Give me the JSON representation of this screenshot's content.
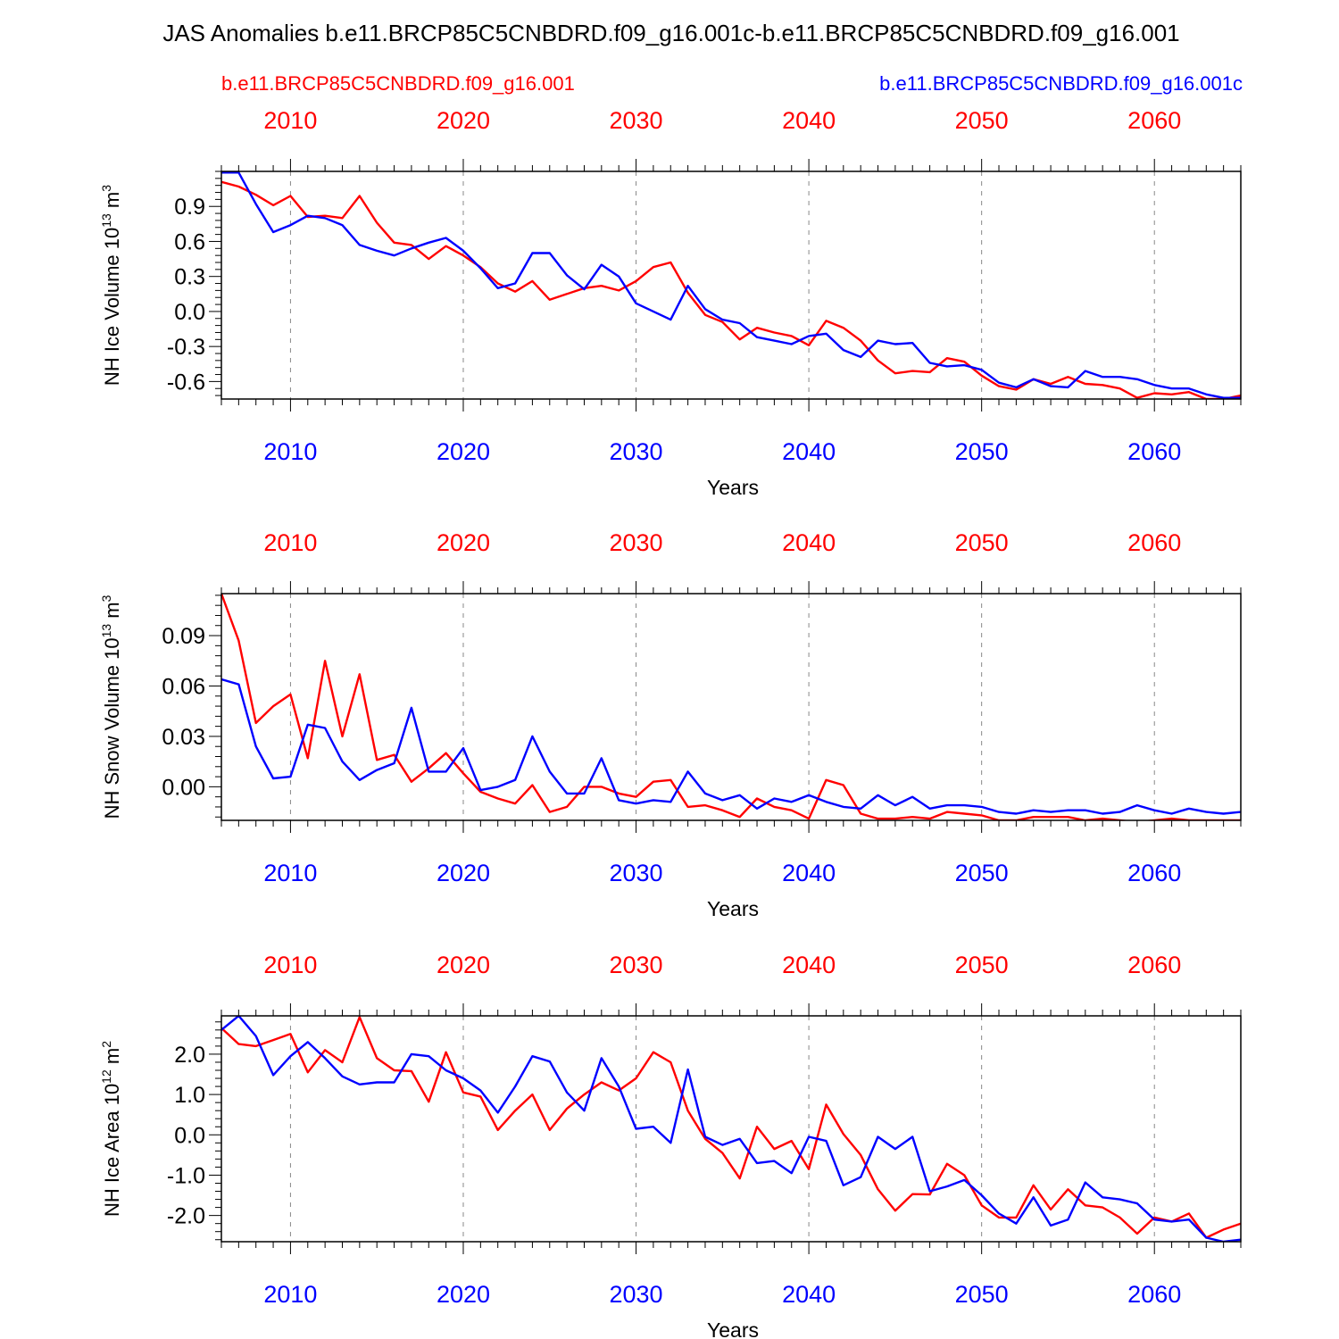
{
  "title": "JAS Anomalies b.e11.BRCP85C5CNBDRD.f09_g16.001c-b.e11.BRCP85C5CNBDRD.f09_g16.001",
  "legend": {
    "left": "b.e11.BRCP85C5CNBDRD.f09_g16.001",
    "right": "b.e11.BRCP85C5CNBDRD.f09_g16.001c"
  },
  "colors": {
    "red": "#ff0000",
    "blue": "#0000ff",
    "axis": "#000000",
    "grid": "#888888"
  },
  "chart_data": [
    {
      "type": "line",
      "ylabel": "NH Ice Volume 10",
      "ylabel_exp": "13",
      "ylabel_unit": "m",
      "ylabel_unit_exp": "3",
      "xlabel": "Years",
      "xlim": [
        2006,
        2065
      ],
      "ylim": [
        -0.75,
        1.2
      ],
      "yticks": [
        -0.6,
        -0.3,
        0.0,
        0.3,
        0.6,
        0.9
      ],
      "ytick_labels": [
        "-0.6",
        "-0.3",
        "0.0",
        "0.3",
        "0.6",
        "0.9"
      ],
      "xticks": [
        2010,
        2020,
        2030,
        2040,
        2050,
        2060
      ],
      "xtick_labels": [
        "2010",
        "2020",
        "2030",
        "2040",
        "2050",
        "2060"
      ],
      "series": [
        {
          "name": "b.e11.BRCP85C5CNBDRD.f09_g16.001",
          "color": "red",
          "values": [
            1.11,
            1.07,
            1.0,
            0.91,
            0.99,
            0.81,
            0.82,
            0.8,
            0.99,
            0.76,
            0.59,
            0.57,
            0.45,
            0.56,
            0.48,
            0.38,
            0.24,
            0.17,
            0.26,
            0.1,
            0.15,
            0.2,
            0.22,
            0.18,
            0.26,
            0.38,
            0.42,
            0.16,
            -0.03,
            -0.09,
            -0.24,
            -0.14,
            -0.18,
            -0.21,
            -0.29,
            -0.08,
            -0.14,
            -0.25,
            -0.42,
            -0.53,
            -0.51,
            -0.52,
            -0.4,
            -0.43,
            -0.55,
            -0.64,
            -0.67,
            -0.58,
            -0.62,
            -0.56,
            -0.62,
            -0.63,
            -0.66,
            -0.74,
            -0.7,
            -0.71,
            -0.69,
            -0.75,
            -0.75,
            -0.72
          ]
        },
        {
          "name": "b.e11.BRCP85C5CNBDRD.f09_g16.001c",
          "color": "blue",
          "values": [
            1.19,
            1.19,
            0.92,
            0.68,
            0.74,
            0.82,
            0.8,
            0.74,
            0.57,
            0.52,
            0.48,
            0.54,
            0.59,
            0.63,
            0.52,
            0.37,
            0.2,
            0.24,
            0.5,
            0.5,
            0.31,
            0.19,
            0.4,
            0.3,
            0.07,
            0.0,
            -0.07,
            0.22,
            0.02,
            -0.07,
            -0.1,
            -0.22,
            -0.25,
            -0.28,
            -0.21,
            -0.19,
            -0.33,
            -0.39,
            -0.25,
            -0.28,
            -0.27,
            -0.44,
            -0.47,
            -0.46,
            -0.5,
            -0.61,
            -0.65,
            -0.58,
            -0.64,
            -0.65,
            -0.51,
            -0.56,
            -0.56,
            -0.58,
            -0.63,
            -0.66,
            -0.66,
            -0.71,
            -0.74,
            -0.74
          ]
        }
      ]
    },
    {
      "type": "line",
      "ylabel": "NH Snow Volume 10",
      "ylabel_exp": "13",
      "ylabel_unit": "m",
      "ylabel_unit_exp": "3",
      "xlabel": "Years",
      "xlim": [
        2006,
        2065
      ],
      "ylim": [
        -0.02,
        0.115
      ],
      "yticks": [
        0.0,
        0.03,
        0.06,
        0.09
      ],
      "ytick_labels": [
        "0.00",
        "0.03",
        "0.06",
        "0.09"
      ],
      "xticks": [
        2010,
        2020,
        2030,
        2040,
        2050,
        2060
      ],
      "xtick_labels": [
        "2010",
        "2020",
        "2030",
        "2040",
        "2050",
        "2060"
      ],
      "series": [
        {
          "name": "b.e11.BRCP85C5CNBDRD.f09_g16.001",
          "color": "red",
          "values": [
            0.115,
            0.087,
            0.038,
            0.048,
            0.055,
            0.017,
            0.075,
            0.03,
            0.067,
            0.016,
            0.019,
            0.003,
            0.011,
            0.02,
            0.008,
            -0.003,
            -0.007,
            -0.01,
            0.001,
            -0.015,
            -0.012,
            0.0,
            0.0,
            -0.004,
            -0.006,
            0.003,
            0.004,
            -0.012,
            -0.011,
            -0.014,
            -0.018,
            -0.007,
            -0.012,
            -0.014,
            -0.019,
            0.004,
            0.001,
            -0.016,
            -0.019,
            -0.019,
            -0.018,
            -0.019,
            -0.015,
            -0.016,
            -0.017,
            -0.02,
            -0.02,
            -0.018,
            -0.018,
            -0.018,
            -0.02,
            -0.019,
            -0.02,
            -0.021,
            -0.02,
            -0.019,
            -0.02,
            -0.02,
            -0.02,
            -0.02
          ]
        },
        {
          "name": "b.e11.BRCP85C5CNBDRD.f09_g16.001c",
          "color": "blue",
          "values": [
            0.064,
            0.061,
            0.024,
            0.005,
            0.006,
            0.037,
            0.035,
            0.015,
            0.004,
            0.01,
            0.014,
            0.047,
            0.009,
            0.009,
            0.023,
            -0.002,
            0.0,
            0.004,
            0.03,
            0.009,
            -0.004,
            -0.004,
            0.017,
            -0.008,
            -0.01,
            -0.008,
            -0.009,
            0.009,
            -0.004,
            -0.008,
            -0.005,
            -0.013,
            -0.007,
            -0.009,
            -0.005,
            -0.009,
            -0.012,
            -0.013,
            -0.005,
            -0.011,
            -0.006,
            -0.013,
            -0.011,
            -0.011,
            -0.012,
            -0.015,
            -0.016,
            -0.014,
            -0.015,
            -0.014,
            -0.014,
            -0.016,
            -0.015,
            -0.011,
            -0.014,
            -0.016,
            -0.013,
            -0.015,
            -0.016,
            -0.015
          ]
        }
      ]
    },
    {
      "type": "line",
      "ylabel": "NH Ice Area 10",
      "ylabel_exp": "12",
      "ylabel_unit": "m",
      "ylabel_unit_exp": "2",
      "xlabel": "Years",
      "xlim": [
        2006,
        2065
      ],
      "ylim": [
        -2.65,
        2.95
      ],
      "yticks": [
        -2.0,
        -1.0,
        0.0,
        1.0,
        2.0
      ],
      "ytick_labels": [
        "-2.0",
        "-1.0",
        "0.0",
        "1.0",
        "2.0"
      ],
      "xticks": [
        2010,
        2020,
        2030,
        2040,
        2050,
        2060
      ],
      "xtick_labels": [
        "2010",
        "2020",
        "2030",
        "2040",
        "2050",
        "2060"
      ],
      "series": [
        {
          "name": "b.e11.BRCP85C5CNBDRD.f09_g16.001",
          "color": "red",
          "values": [
            2.65,
            2.25,
            2.2,
            2.35,
            2.5,
            1.55,
            2.1,
            1.8,
            2.92,
            1.9,
            1.6,
            1.58,
            0.82,
            2.05,
            1.05,
            0.95,
            0.12,
            0.6,
            1.0,
            0.12,
            0.65,
            1.0,
            1.3,
            1.1,
            1.4,
            2.05,
            1.8,
            0.6,
            -0.1,
            -0.45,
            -1.08,
            0.2,
            -0.35,
            -0.15,
            -0.85,
            0.75,
            0.02,
            -0.5,
            -1.35,
            -1.88,
            -1.47,
            -1.48,
            -0.72,
            -1.0,
            -1.75,
            -2.05,
            -2.05,
            -1.25,
            -1.85,
            -1.35,
            -1.75,
            -1.8,
            -2.05,
            -2.45,
            -2.05,
            -2.15,
            -1.95,
            -2.55,
            -2.35,
            -2.2
          ]
        },
        {
          "name": "b.e11.BRCP85C5CNBDRD.f09_g16.001c",
          "color": "blue",
          "values": [
            2.6,
            2.95,
            2.45,
            1.48,
            1.95,
            2.3,
            1.9,
            1.45,
            1.25,
            1.3,
            1.3,
            2.0,
            1.95,
            1.6,
            1.4,
            1.1,
            0.55,
            1.2,
            1.95,
            1.82,
            1.05,
            0.6,
            1.9,
            1.2,
            0.15,
            0.2,
            -0.2,
            1.62,
            -0.05,
            -0.25,
            -0.1,
            -0.7,
            -0.65,
            -0.95,
            -0.05,
            -0.15,
            -1.25,
            -1.05,
            -0.05,
            -0.35,
            -0.05,
            -1.4,
            -1.28,
            -1.12,
            -1.5,
            -1.95,
            -2.2,
            -1.55,
            -2.25,
            -2.1,
            -1.18,
            -1.55,
            -1.6,
            -1.7,
            -2.1,
            -2.15,
            -2.1,
            -2.55,
            -2.65,
            -2.6
          ]
        }
      ]
    }
  ]
}
